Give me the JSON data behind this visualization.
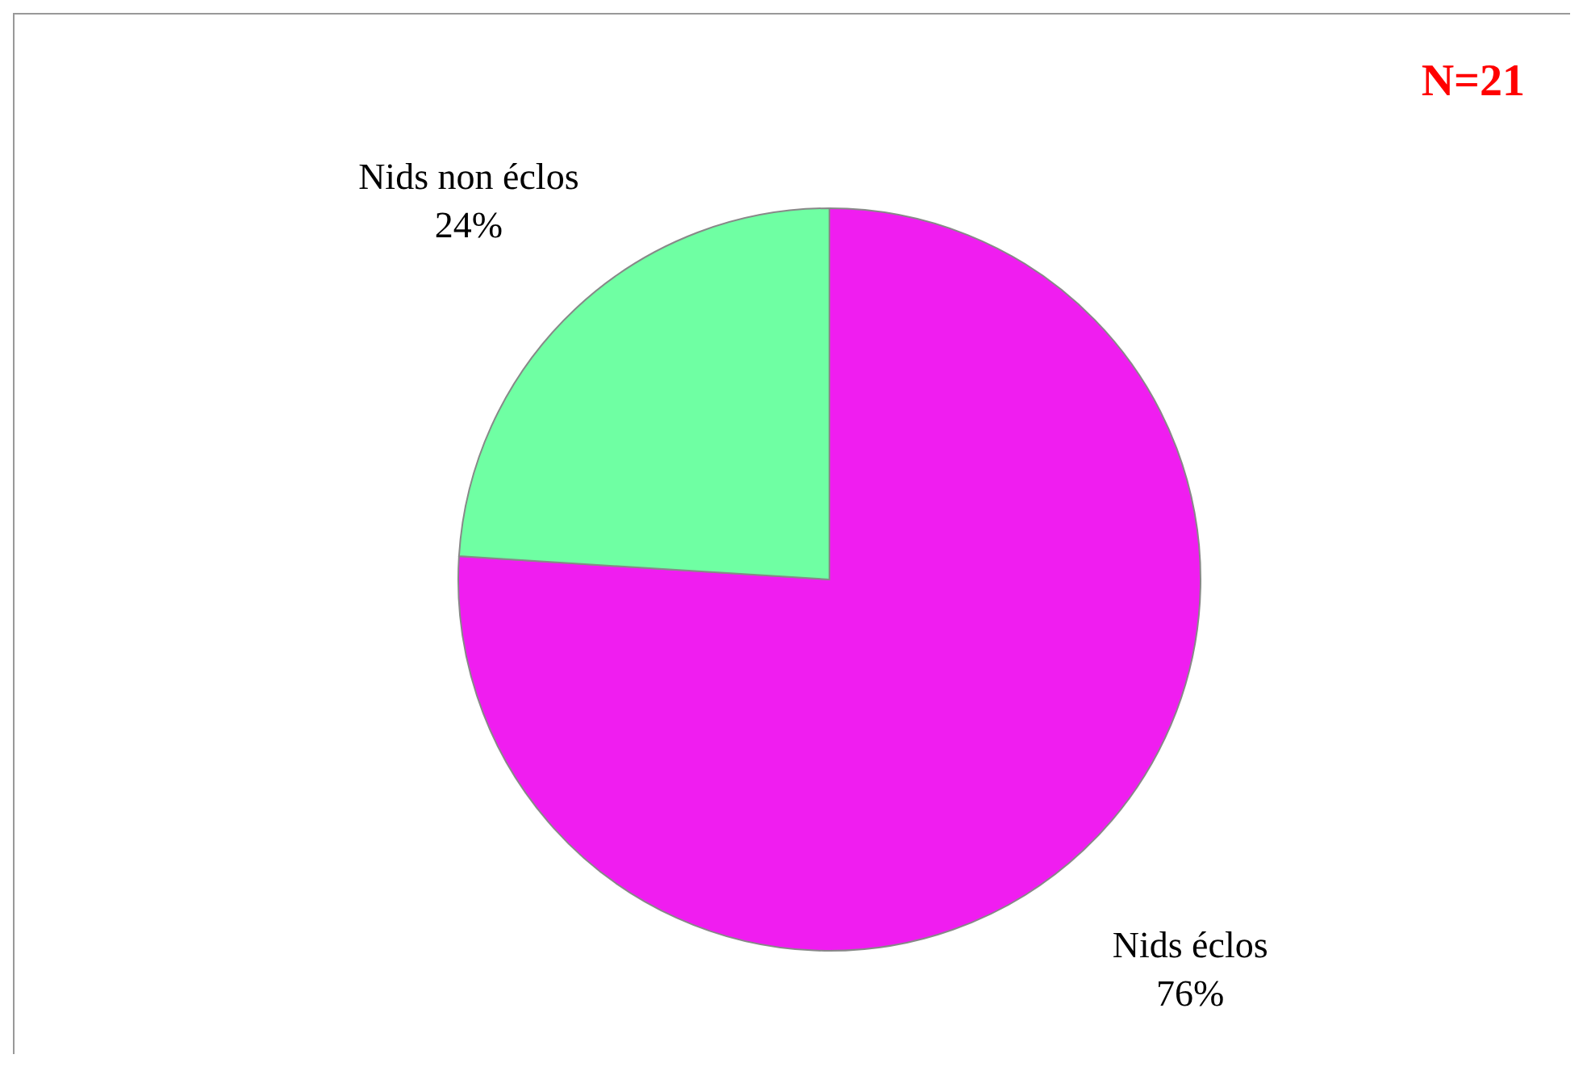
{
  "chart_data": {
    "type": "pie",
    "categories": [
      "Nids éclos",
      "Nids non éclos"
    ],
    "values": [
      76,
      24
    ],
    "value_labels": [
      "76%",
      "24%"
    ],
    "colors": [
      "#f01df0",
      "#6fffa3"
    ],
    "annotations": [
      "N=21"
    ]
  }
}
